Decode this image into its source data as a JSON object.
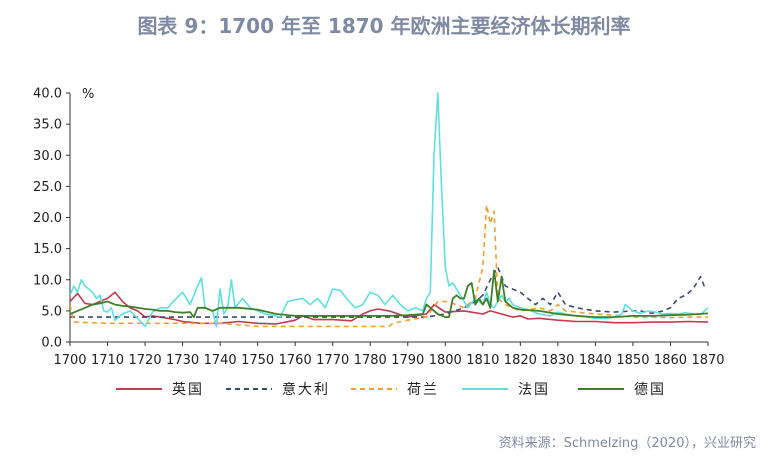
{
  "title": "图表 9：1700 年至 1870 年欧洲主要经济体长期利率",
  "source": "资料来源：Schmelzing（2020），兴业研究",
  "colors": {
    "英国": "#c6384e",
    "意大利": "#3b4a75",
    "荷兰": "#f0a030",
    "法国": "#5fe0de",
    "德国": "#3f7f2a"
  },
  "chart_data": {
    "type": "line",
    "title": "图表 9：1700 年至 1870 年欧洲主要经济体长期利率",
    "ylabel": "%",
    "xlabel": "",
    "xlim": [
      1700,
      1870
    ],
    "ylim": [
      0,
      40
    ],
    "x_ticks": [
      1700,
      1710,
      1720,
      1730,
      1740,
      1750,
      1760,
      1770,
      1780,
      1790,
      1800,
      1810,
      1820,
      1830,
      1840,
      1850,
      1860,
      1870
    ],
    "y_ticks": [
      "0.0",
      "5.0",
      "10.0",
      "15.0",
      "20.0",
      "25.0",
      "30.0",
      "35.0",
      "40.0"
    ],
    "legend_position": "bottom",
    "series": [
      {
        "name": "英国",
        "style": "solid",
        "points": [
          [
            1700,
            6.5
          ],
          [
            1702,
            7.8
          ],
          [
            1704,
            6.2
          ],
          [
            1706,
            6.0
          ],
          [
            1708,
            6.5
          ],
          [
            1710,
            7.0
          ],
          [
            1712,
            8.0
          ],
          [
            1714,
            6.5
          ],
          [
            1716,
            5.5
          ],
          [
            1718,
            5.0
          ],
          [
            1720,
            4.0
          ],
          [
            1722,
            4.2
          ],
          [
            1724,
            4.0
          ],
          [
            1726,
            3.8
          ],
          [
            1728,
            3.6
          ],
          [
            1730,
            3.3
          ],
          [
            1735,
            3.0
          ],
          [
            1740,
            3.0
          ],
          [
            1745,
            3.3
          ],
          [
            1750,
            3.0
          ],
          [
            1755,
            2.9
          ],
          [
            1760,
            3.5
          ],
          [
            1762,
            4.2
          ],
          [
            1765,
            3.6
          ],
          [
            1770,
            3.6
          ],
          [
            1775,
            3.4
          ],
          [
            1778,
            4.5
          ],
          [
            1780,
            5.0
          ],
          [
            1782,
            5.3
          ],
          [
            1785,
            5.0
          ],
          [
            1790,
            4.0
          ],
          [
            1795,
            4.5
          ],
          [
            1797,
            6.0
          ],
          [
            1800,
            4.8
          ],
          [
            1805,
            5.0
          ],
          [
            1810,
            4.5
          ],
          [
            1812,
            5.0
          ],
          [
            1815,
            4.5
          ],
          [
            1818,
            4.0
          ],
          [
            1820,
            4.2
          ],
          [
            1822,
            3.7
          ],
          [
            1825,
            3.8
          ],
          [
            1830,
            3.5
          ],
          [
            1835,
            3.3
          ],
          [
            1840,
            3.3
          ],
          [
            1845,
            3.1
          ],
          [
            1850,
            3.1
          ],
          [
            1855,
            3.2
          ],
          [
            1860,
            3.2
          ],
          [
            1865,
            3.3
          ],
          [
            1870,
            3.2
          ]
        ]
      },
      {
        "name": "意大利",
        "style": "dash",
        "points": [
          [
            1700,
            4.0
          ],
          [
            1720,
            4.0
          ],
          [
            1740,
            4.0
          ],
          [
            1760,
            4.0
          ],
          [
            1780,
            4.0
          ],
          [
            1795,
            4.0
          ],
          [
            1800,
            4.5
          ],
          [
            1805,
            5.5
          ],
          [
            1808,
            6.5
          ],
          [
            1810,
            7.5
          ],
          [
            1812,
            10.0
          ],
          [
            1814,
            12.0
          ],
          [
            1816,
            9.0
          ],
          [
            1818,
            8.5
          ],
          [
            1820,
            8.0
          ],
          [
            1822,
            7.0
          ],
          [
            1824,
            6.0
          ],
          [
            1826,
            7.0
          ],
          [
            1828,
            6.0
          ],
          [
            1830,
            8.0
          ],
          [
            1832,
            6.0
          ],
          [
            1835,
            5.5
          ],
          [
            1840,
            5.0
          ],
          [
            1845,
            4.8
          ],
          [
            1850,
            5.0
          ],
          [
            1852,
            5.0
          ],
          [
            1855,
            4.6
          ],
          [
            1858,
            5.0
          ],
          [
            1860,
            5.5
          ],
          [
            1862,
            7.0
          ],
          [
            1864,
            7.5
          ],
          [
            1866,
            8.5
          ],
          [
            1868,
            10.5
          ],
          [
            1869,
            9.0
          ],
          [
            1870,
            8.8
          ]
        ]
      },
      {
        "name": "荷兰",
        "style": "dash",
        "points": [
          [
            1700,
            6.0
          ],
          [
            1701,
            3.2
          ],
          [
            1710,
            3.0
          ],
          [
            1720,
            3.0
          ],
          [
            1730,
            3.0
          ],
          [
            1740,
            3.0
          ],
          [
            1750,
            2.5
          ],
          [
            1760,
            2.5
          ],
          [
            1770,
            2.5
          ],
          [
            1780,
            2.5
          ],
          [
            1785,
            2.5
          ],
          [
            1786,
            3.0
          ],
          [
            1790,
            3.5
          ],
          [
            1795,
            4.0
          ],
          [
            1798,
            6.5
          ],
          [
            1800,
            6.5
          ],
          [
            1803,
            6.0
          ],
          [
            1805,
            5.5
          ],
          [
            1808,
            7.0
          ],
          [
            1810,
            12.0
          ],
          [
            1811,
            22.0
          ],
          [
            1812,
            19.0
          ],
          [
            1813,
            21.0
          ],
          [
            1814,
            7.0
          ],
          [
            1816,
            6.0
          ],
          [
            1818,
            5.5
          ],
          [
            1820,
            5.0
          ],
          [
            1825,
            5.5
          ],
          [
            1828,
            5.0
          ],
          [
            1830,
            6.0
          ],
          [
            1832,
            5.0
          ],
          [
            1835,
            4.8
          ],
          [
            1840,
            4.5
          ],
          [
            1845,
            4.3
          ],
          [
            1850,
            4.0
          ],
          [
            1855,
            4.0
          ],
          [
            1860,
            3.9
          ],
          [
            1865,
            4.0
          ],
          [
            1870,
            4.0
          ]
        ]
      },
      {
        "name": "法国",
        "style": "solid",
        "points": [
          [
            1700,
            7.5
          ],
          [
            1701,
            9.0
          ],
          [
            1702,
            8.0
          ],
          [
            1703,
            10.0
          ],
          [
            1704,
            9.0
          ],
          [
            1706,
            8.0
          ],
          [
            1707,
            7.0
          ],
          [
            1708,
            7.5
          ],
          [
            1709,
            5.0
          ],
          [
            1710,
            4.8
          ],
          [
            1711,
            5.5
          ],
          [
            1712,
            3.5
          ],
          [
            1714,
            4.5
          ],
          [
            1716,
            5.0
          ],
          [
            1718,
            3.8
          ],
          [
            1720,
            2.5
          ],
          [
            1722,
            4.8
          ],
          [
            1724,
            5.5
          ],
          [
            1726,
            5.5
          ],
          [
            1728,
            6.8
          ],
          [
            1730,
            8.0
          ],
          [
            1732,
            6.0
          ],
          [
            1734,
            9.0
          ],
          [
            1735,
            10.3
          ],
          [
            1736,
            5.5
          ],
          [
            1738,
            5.0
          ],
          [
            1739,
            2.5
          ],
          [
            1740,
            8.5
          ],
          [
            1741,
            4.5
          ],
          [
            1742,
            5.5
          ],
          [
            1743,
            10.0
          ],
          [
            1744,
            5.5
          ],
          [
            1746,
            7.0
          ],
          [
            1748,
            5.5
          ],
          [
            1750,
            5.0
          ],
          [
            1752,
            4.5
          ],
          [
            1754,
            4.3
          ],
          [
            1756,
            4.0
          ],
          [
            1758,
            6.5
          ],
          [
            1760,
            6.8
          ],
          [
            1762,
            7.0
          ],
          [
            1764,
            6.0
          ],
          [
            1766,
            7.0
          ],
          [
            1768,
            5.5
          ],
          [
            1770,
            8.5
          ],
          [
            1772,
            8.3
          ],
          [
            1774,
            6.8
          ],
          [
            1776,
            5.5
          ],
          [
            1778,
            6.0
          ],
          [
            1780,
            8.0
          ],
          [
            1782,
            7.5
          ],
          [
            1784,
            6.0
          ],
          [
            1786,
            7.5
          ],
          [
            1788,
            6.0
          ],
          [
            1790,
            5.0
          ],
          [
            1792,
            5.5
          ],
          [
            1794,
            5.0
          ],
          [
            1795,
            7.0
          ],
          [
            1796,
            8.0
          ],
          [
            1797,
            30.0
          ],
          [
            1798,
            40.0
          ],
          [
            1799,
            25.0
          ],
          [
            1800,
            12.0
          ],
          [
            1801,
            9.0
          ],
          [
            1802,
            9.5
          ],
          [
            1803,
            8.5
          ],
          [
            1805,
            6.5
          ],
          [
            1806,
            5.5
          ],
          [
            1808,
            7.0
          ],
          [
            1810,
            6.0
          ],
          [
            1811,
            8.0
          ],
          [
            1812,
            6.0
          ],
          [
            1813,
            5.5
          ],
          [
            1814,
            6.5
          ],
          [
            1815,
            7.5
          ],
          [
            1816,
            6.5
          ],
          [
            1817,
            7.0
          ],
          [
            1818,
            6.0
          ],
          [
            1820,
            5.5
          ],
          [
            1822,
            5.2
          ],
          [
            1825,
            4.5
          ],
          [
            1828,
            4.2
          ],
          [
            1830,
            4.8
          ],
          [
            1832,
            4.5
          ],
          [
            1835,
            4.2
          ],
          [
            1838,
            4.0
          ],
          [
            1840,
            3.8
          ],
          [
            1843,
            3.8
          ],
          [
            1845,
            4.0
          ],
          [
            1847,
            4.5
          ],
          [
            1848,
            6.0
          ],
          [
            1849,
            5.5
          ],
          [
            1850,
            5.0
          ],
          [
            1852,
            4.6
          ],
          [
            1854,
            5.0
          ],
          [
            1856,
            4.8
          ],
          [
            1858,
            4.5
          ],
          [
            1860,
            4.6
          ],
          [
            1862,
            4.5
          ],
          [
            1864,
            4.7
          ],
          [
            1866,
            4.5
          ],
          [
            1868,
            4.4
          ],
          [
            1870,
            5.5
          ]
        ]
      },
      {
        "name": "德国",
        "style": "solid",
        "points": [
          [
            1700,
            4.5
          ],
          [
            1702,
            5.0
          ],
          [
            1704,
            5.5
          ],
          [
            1706,
            6.0
          ],
          [
            1708,
            6.2
          ],
          [
            1710,
            6.5
          ],
          [
            1712,
            6.0
          ],
          [
            1714,
            5.8
          ],
          [
            1716,
            5.7
          ],
          [
            1718,
            5.5
          ],
          [
            1720,
            5.3
          ],
          [
            1722,
            5.2
          ],
          [
            1724,
            5.0
          ],
          [
            1726,
            5.0
          ],
          [
            1728,
            4.8
          ],
          [
            1730,
            4.7
          ],
          [
            1732,
            4.8
          ],
          [
            1733,
            4.0
          ],
          [
            1734,
            5.5
          ],
          [
            1736,
            5.5
          ],
          [
            1738,
            5.0
          ],
          [
            1740,
            5.5
          ],
          [
            1745,
            5.5
          ],
          [
            1750,
            5.2
          ],
          [
            1755,
            4.5
          ],
          [
            1760,
            4.2
          ],
          [
            1765,
            4.2
          ],
          [
            1770,
            4.2
          ],
          [
            1775,
            4.2
          ],
          [
            1780,
            4.2
          ],
          [
            1785,
            4.2
          ],
          [
            1790,
            4.3
          ],
          [
            1794,
            4.5
          ],
          [
            1795,
            6.0
          ],
          [
            1796,
            5.5
          ],
          [
            1798,
            4.5
          ],
          [
            1800,
            4.0
          ],
          [
            1801,
            4.0
          ],
          [
            1802,
            7.0
          ],
          [
            1803,
            7.5
          ],
          [
            1804,
            7.0
          ],
          [
            1805,
            7.0
          ],
          [
            1806,
            9.0
          ],
          [
            1807,
            9.5
          ],
          [
            1808,
            6.0
          ],
          [
            1809,
            7.0
          ],
          [
            1810,
            6.0
          ],
          [
            1811,
            7.0
          ],
          [
            1812,
            5.5
          ],
          [
            1813,
            11.5
          ],
          [
            1814,
            6.5
          ],
          [
            1815,
            10.5
          ],
          [
            1816,
            6.5
          ],
          [
            1818,
            5.5
          ],
          [
            1820,
            5.2
          ],
          [
            1825,
            5.0
          ],
          [
            1830,
            4.5
          ],
          [
            1835,
            4.2
          ],
          [
            1840,
            4.0
          ],
          [
            1845,
            4.0
          ],
          [
            1850,
            4.2
          ],
          [
            1855,
            4.2
          ],
          [
            1860,
            4.3
          ],
          [
            1865,
            4.4
          ],
          [
            1870,
            4.6
          ]
        ]
      }
    ]
  }
}
